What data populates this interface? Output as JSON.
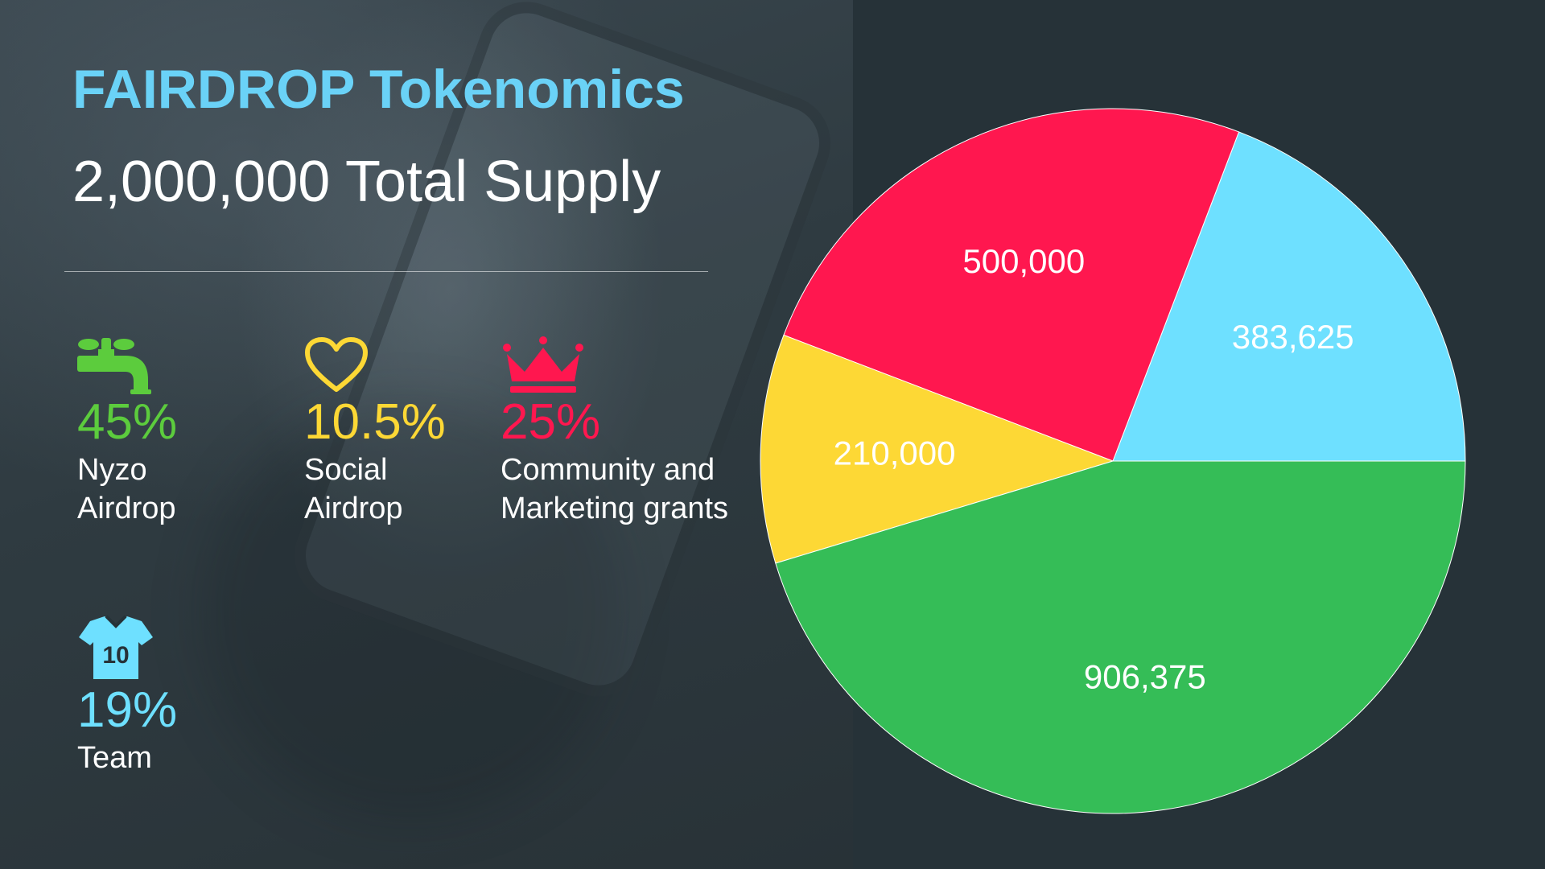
{
  "title": "FAIRDROP Tokenomics",
  "subtitle": "2,000,000 Total Supply",
  "colors": {
    "title": "#6ad2f7",
    "nyzo": "#5ccc3d",
    "social": "#fdd835",
    "community": "#ff174f",
    "team": "#6ee0ff"
  },
  "stats": [
    {
      "icon": "faucet-icon",
      "percent": "45%",
      "label": "Nyzo Airdrop",
      "color": "#5ccc3d"
    },
    {
      "icon": "heart-icon",
      "percent": "10.5%",
      "label": "Social Airdrop",
      "color": "#fdd835"
    },
    {
      "icon": "crown-icon",
      "percent": "25%",
      "label": "Community and Marketing grants",
      "color": "#ff174f"
    },
    {
      "icon": "jersey-icon",
      "percent": "19%",
      "label": "Team",
      "color": "#6ee0ff"
    }
  ],
  "chart_data": {
    "type": "pie",
    "title": "",
    "start_angle_deg": 0,
    "direction": "counterclockwise",
    "slices": [
      {
        "value": 383625,
        "label": "383,625",
        "color": "#6ee0ff"
      },
      {
        "value": 500000,
        "label": "500,000",
        "color": "#ff174f"
      },
      {
        "value": 210000,
        "label": "210,000",
        "color": "#fdd835"
      },
      {
        "value": 906375,
        "label": "906,375",
        "color": "#35bd57"
      }
    ]
  }
}
